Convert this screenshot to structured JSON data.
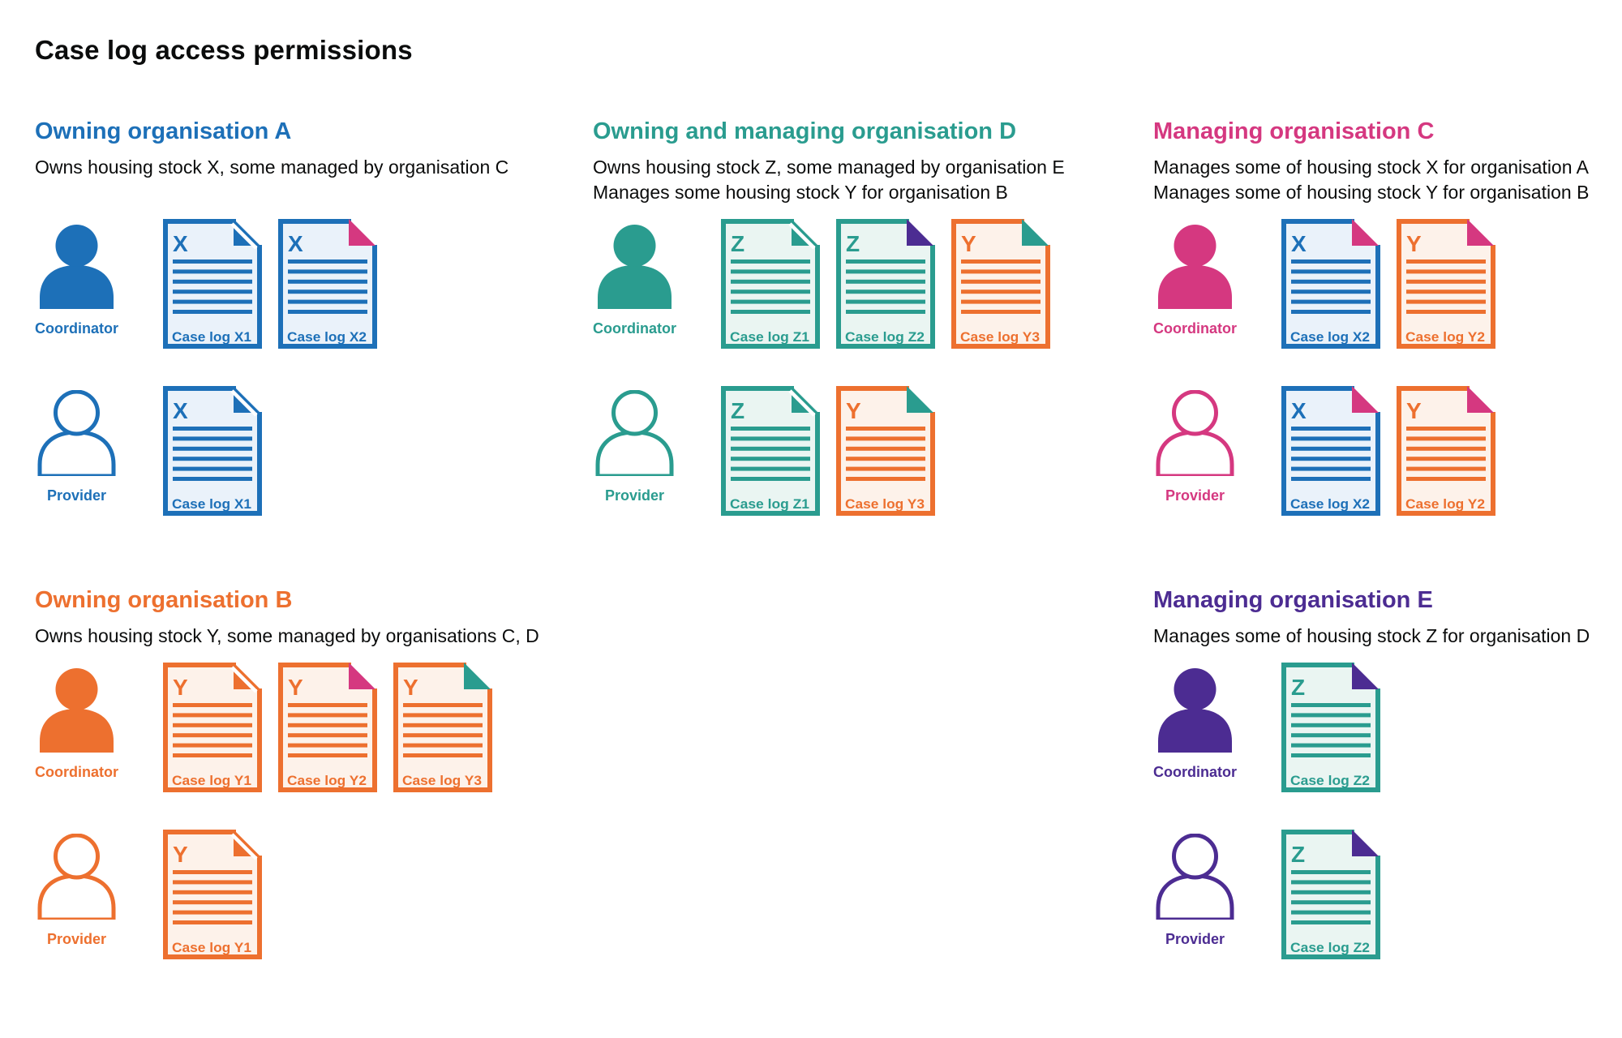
{
  "title": "Case log access permissions",
  "colors": {
    "blue": "#1d70b8",
    "blue_tint": "#eaf2fa",
    "teal": "#2a9c8f",
    "teal_tint": "#eaf5f2",
    "orange": "#ed702f",
    "orange_tint": "#fdf2ea",
    "pink": "#d53880",
    "purple": "#4c2c92",
    "text": "#0b0c0c",
    "background": "#ffffff"
  },
  "organisations": [
    {
      "id": "A",
      "name": "Owning organisation A",
      "color": "blue",
      "grid": {
        "col": 1,
        "row": 1
      },
      "description_lines": [
        "Owns housing stock X, some managed by organisation C"
      ],
      "people": [
        {
          "role": "Coordinator",
          "variant": "filled",
          "docs": [
            {
              "label": "Case log X1",
              "letter": "X",
              "stock": "blue",
              "fold": "blue"
            },
            {
              "label": "Case log X2",
              "letter": "X",
              "stock": "blue",
              "fold": "pink"
            }
          ]
        },
        {
          "role": "Provider",
          "variant": "outline",
          "docs": [
            {
              "label": "Case log X1",
              "letter": "X",
              "stock": "blue",
              "fold": "blue"
            }
          ]
        }
      ]
    },
    {
      "id": "D",
      "name": "Owning and managing organisation D",
      "color": "teal",
      "grid": {
        "col": 2,
        "row": 1
      },
      "description_lines": [
        "Owns housing stock Z, some managed by organisation E",
        "Manages some housing stock Y for organisation B"
      ],
      "people": [
        {
          "role": "Coordinator",
          "variant": "filled",
          "docs": [
            {
              "label": "Case log Z1",
              "letter": "Z",
              "stock": "teal",
              "fold": "teal"
            },
            {
              "label": "Case log Z2",
              "letter": "Z",
              "stock": "teal",
              "fold": "purple"
            },
            {
              "label": "Case log Y3",
              "letter": "Y",
              "stock": "orange",
              "fold": "teal"
            }
          ]
        },
        {
          "role": "Provider",
          "variant": "outline",
          "docs": [
            {
              "label": "Case log Z1",
              "letter": "Z",
              "stock": "teal",
              "fold": "teal"
            },
            {
              "label": "Case log Y3",
              "letter": "Y",
              "stock": "orange",
              "fold": "teal"
            }
          ]
        }
      ]
    },
    {
      "id": "C",
      "name": "Managing organisation C",
      "color": "pink",
      "grid": {
        "col": 3,
        "row": 1
      },
      "description_lines": [
        "Manages some of housing stock X for organisation A",
        "Manages some of housing stock Y for organisation B"
      ],
      "people": [
        {
          "role": "Coordinator",
          "variant": "filled",
          "docs": [
            {
              "label": "Case log X2",
              "letter": "X",
              "stock": "blue",
              "fold": "pink"
            },
            {
              "label": "Case log Y2",
              "letter": "Y",
              "stock": "orange",
              "fold": "pink"
            }
          ]
        },
        {
          "role": "Provider",
          "variant": "outline",
          "docs": [
            {
              "label": "Case log X2",
              "letter": "X",
              "stock": "blue",
              "fold": "pink"
            },
            {
              "label": "Case log Y2",
              "letter": "Y",
              "stock": "orange",
              "fold": "pink"
            }
          ]
        }
      ]
    },
    {
      "id": "B",
      "name": "Owning organisation B",
      "color": "orange",
      "grid": {
        "col": 1,
        "row": 2
      },
      "description_lines": [
        "Owns housing stock Y, some managed by organisations C, D"
      ],
      "people": [
        {
          "role": "Coordinator",
          "variant": "filled",
          "docs": [
            {
              "label": "Case log Y1",
              "letter": "Y",
              "stock": "orange",
              "fold": "orange"
            },
            {
              "label": "Case log Y2",
              "letter": "Y",
              "stock": "orange",
              "fold": "pink"
            },
            {
              "label": "Case log Y3",
              "letter": "Y",
              "stock": "orange",
              "fold": "teal"
            }
          ]
        },
        {
          "role": "Provider",
          "variant": "outline",
          "docs": [
            {
              "label": "Case log Y1",
              "letter": "Y",
              "stock": "orange",
              "fold": "orange"
            }
          ]
        }
      ]
    },
    {
      "id": "E",
      "name": "Managing organisation E",
      "color": "purple",
      "grid": {
        "col": 3,
        "row": 2
      },
      "description_lines": [
        "Manages some of housing stock Z for organisation D"
      ],
      "people": [
        {
          "role": "Coordinator",
          "variant": "filled",
          "docs": [
            {
              "label": "Case log Z2",
              "letter": "Z",
              "stock": "teal",
              "fold": "purple"
            }
          ]
        },
        {
          "role": "Provider",
          "variant": "outline",
          "docs": [
            {
              "label": "Case log Z2",
              "letter": "Z",
              "stock": "teal",
              "fold": "purple"
            }
          ]
        }
      ]
    }
  ]
}
